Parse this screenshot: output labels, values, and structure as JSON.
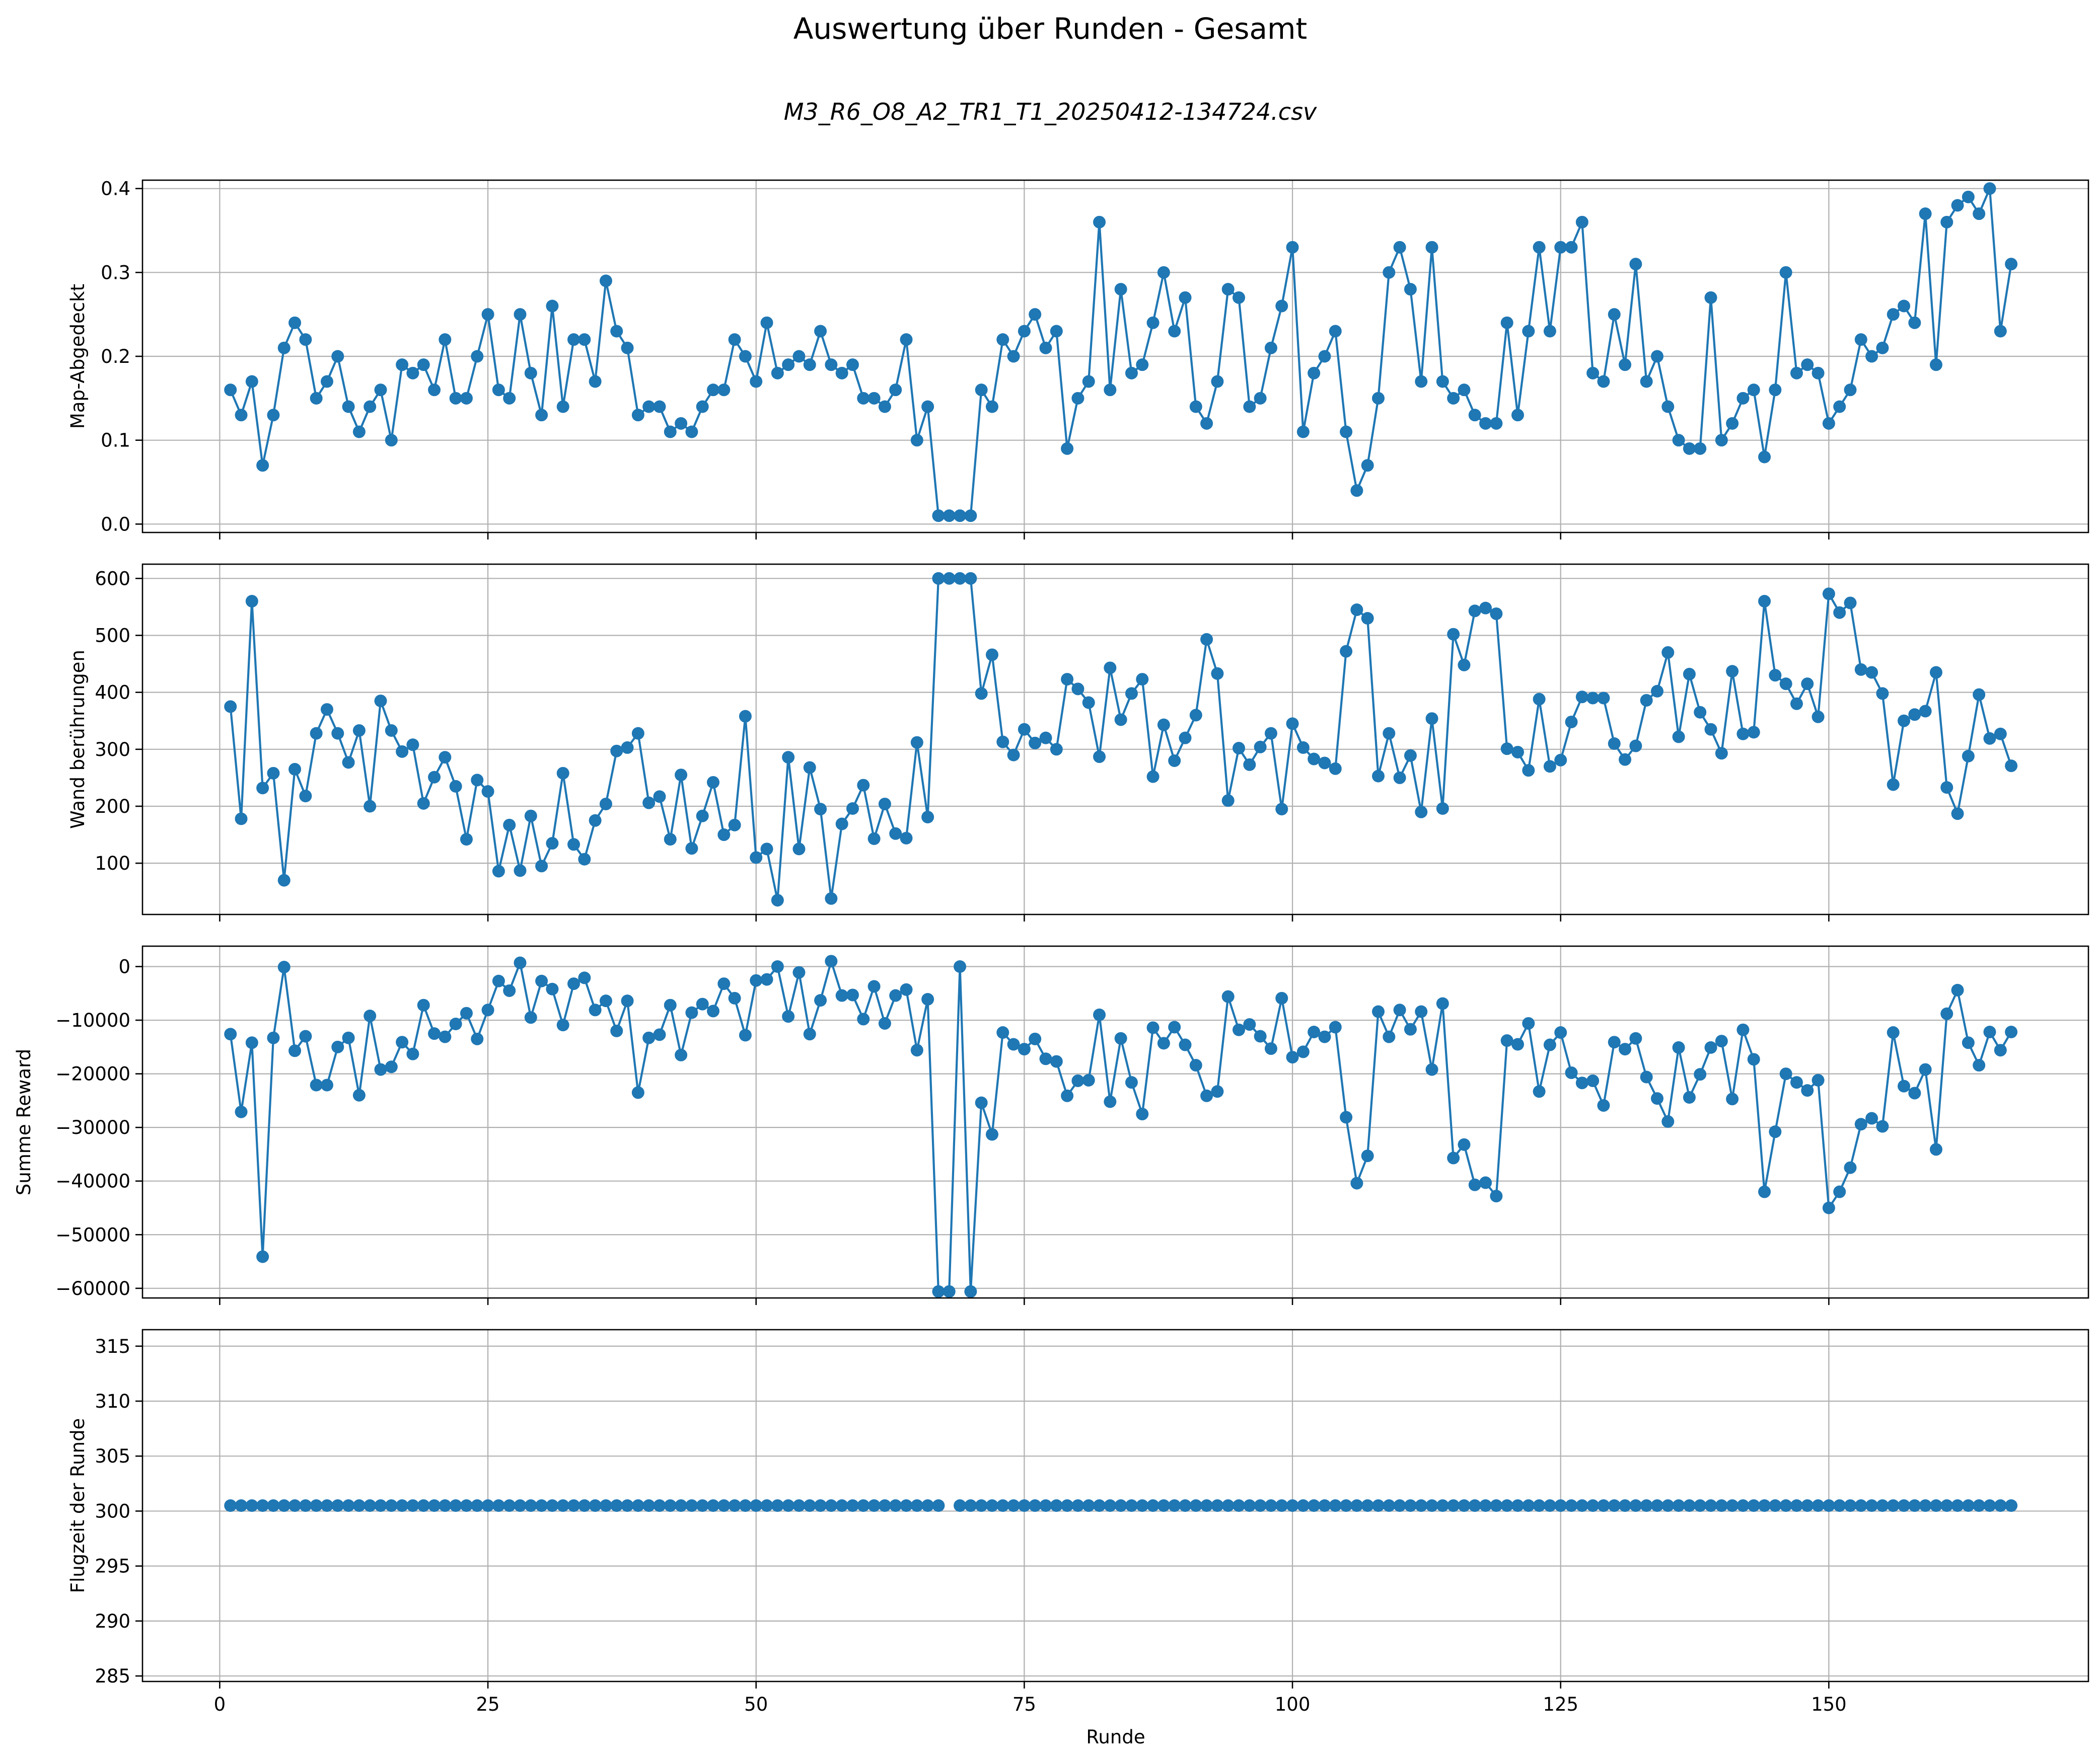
{
  "chart_data": {
    "type": "line",
    "title": "Auswertung über Runden - Gesamt",
    "subtitle": "M3_R6_O8_A2_TR1_T1_20250412-134724.csv",
    "xlabel": "Runde",
    "xlim": [
      -7.2,
      174.2
    ],
    "x_ticks": [
      0,
      25,
      50,
      75,
      100,
      125,
      150
    ],
    "grid": true,
    "series_color": "#1f77b4",
    "panels": [
      {
        "name": "map",
        "ylabel": "Map-Abgedeckt",
        "ylim": [
          -0.01,
          0.41
        ],
        "y_ticks": [
          0.0,
          0.1,
          0.2,
          0.3,
          0.4
        ],
        "y_tick_labels": [
          "0.0",
          "0.1",
          "0.2",
          "0.3",
          "0.4"
        ],
        "values": [
          0.16,
          0.13,
          0.17,
          0.07,
          0.13,
          0.21,
          0.24,
          0.22,
          0.15,
          0.17,
          0.2,
          0.14,
          0.11,
          0.14,
          0.16,
          0.1,
          0.19,
          0.18,
          0.19,
          0.16,
          0.22,
          0.15,
          0.15,
          0.2,
          0.25,
          0.16,
          0.15,
          0.25,
          0.18,
          0.13,
          0.26,
          0.14,
          0.22,
          0.22,
          0.17,
          0.29,
          0.23,
          0.21,
          0.13,
          0.14,
          0.14,
          0.11,
          0.12,
          0.11,
          0.14,
          0.16,
          0.16,
          0.22,
          0.2,
          0.17,
          0.24,
          0.18,
          0.19,
          0.2,
          0.19,
          0.23,
          0.19,
          0.18,
          0.19,
          0.15,
          0.15,
          0.14,
          0.16,
          0.22,
          0.1,
          0.14,
          0.01,
          0.01,
          0.01,
          0.01,
          0.16,
          0.14,
          0.22,
          0.2,
          0.23,
          0.25,
          0.21,
          0.23,
          0.09,
          0.15,
          0.17,
          0.36,
          0.16,
          0.28,
          0.18,
          0.19,
          0.24,
          0.3,
          0.23,
          0.27,
          0.14,
          0.12,
          0.17,
          0.28,
          0.27,
          0.14,
          0.15,
          0.21,
          0.26,
          0.33,
          0.11,
          0.18,
          0.2,
          0.23,
          0.11,
          0.04,
          0.07,
          0.15,
          0.3,
          0.33,
          0.28,
          0.17,
          0.33,
          0.17,
          0.15,
          0.16,
          0.13,
          0.12,
          0.12,
          0.24,
          0.13,
          0.23,
          0.33,
          0.23,
          0.33,
          0.33,
          0.36,
          0.18,
          0.17,
          0.25,
          0.19,
          0.31,
          0.17,
          0.2,
          0.14,
          0.1,
          0.09,
          0.09,
          0.27,
          0.1,
          0.12,
          0.15,
          0.16,
          0.08,
          0.16,
          0.3,
          0.18,
          0.19,
          0.18,
          0.12,
          0.14,
          0.16,
          0.22,
          0.2,
          0.21,
          0.25,
          0.26,
          0.24,
          0.37,
          0.19,
          0.36,
          0.38,
          0.39,
          0.37,
          0.4,
          0.23,
          0.31
        ]
      },
      {
        "name": "wand",
        "ylabel": "Wand berührungen",
        "ylim": [
          10,
          625
        ],
        "y_ticks": [
          100,
          200,
          300,
          400,
          500,
          600
        ],
        "y_tick_labels": [
          "100",
          "200",
          "300",
          "400",
          "500",
          "600"
        ],
        "values": [
          375,
          178,
          560,
          232,
          258,
          70,
          265,
          218,
          328,
          370,
          328,
          277,
          333,
          200,
          385,
          333,
          296,
          308,
          205,
          251,
          286,
          235,
          142,
          246,
          226,
          86,
          167,
          87,
          183,
          95,
          135,
          258,
          133,
          107,
          175,
          204,
          297,
          303,
          328,
          206,
          217,
          142,
          255,
          126,
          183,
          242,
          150,
          167,
          358,
          110,
          125,
          35,
          286,
          125,
          268,
          195,
          38,
          169,
          196,
          237,
          143,
          204,
          152,
          144,
          312,
          181,
          600,
          600,
          600,
          600,
          398,
          466,
          313,
          290,
          335,
          311,
          320,
          300,
          423,
          406,
          382,
          287,
          443,
          352,
          398,
          423,
          252,
          343,
          280,
          320,
          360,
          493,
          433,
          210,
          302,
          273,
          304,
          328,
          195,
          345,
          303,
          283,
          276,
          266,
          472,
          545,
          530,
          253,
          328,
          250,
          289,
          190,
          354,
          196,
          502,
          448,
          543,
          548,
          538,
          301,
          295,
          263,
          388,
          270,
          281,
          348,
          392,
          390,
          390,
          310,
          282,
          306,
          386,
          402,
          470,
          322,
          432,
          365,
          335,
          293,
          437,
          327,
          330,
          560,
          430,
          415,
          380,
          415,
          357,
          573,
          540,
          557,
          440,
          435,
          398,
          238,
          350,
          361,
          367,
          435,
          233,
          187,
          288,
          396,
          319,
          327,
          271
        ]
      },
      {
        "name": "reward",
        "ylabel": "Summe Reward",
        "ylim": [
          -61800,
          3800
        ],
        "y_ticks": [
          0,
          -10000,
          -20000,
          -30000,
          -40000,
          -50000,
          -60000
        ],
        "y_tick_labels": [
          "0",
          "−10000",
          "−20000",
          "−30000",
          "−40000",
          "−50000",
          "−60000"
        ],
        "values": [
          -12600,
          -27100,
          -14200,
          -54100,
          -13300,
          -100,
          -15700,
          -13000,
          -22100,
          -22100,
          -15000,
          -13300,
          -24000,
          -9200,
          -19200,
          -18700,
          -14100,
          -16300,
          -7200,
          -12500,
          -13100,
          -10700,
          -8700,
          -13500,
          -8100,
          -2700,
          -4500,
          700,
          -9500,
          -2700,
          -4200,
          -10900,
          -3200,
          -2100,
          -8100,
          -6400,
          -12000,
          -6400,
          -23500,
          -13300,
          -12700,
          -7200,
          -16500,
          -8600,
          -7000,
          -8300,
          -3200,
          -5900,
          -12800,
          -2600,
          -2400,
          0,
          -9300,
          -1100,
          -12600,
          -6300,
          1000,
          -5400,
          -5300,
          -9800,
          -3700,
          -10600,
          -5400,
          -4300,
          -15600,
          -6100,
          -60600,
          -60600,
          0,
          -60600,
          -25400,
          -31300,
          -12300,
          -14500,
          -15400,
          -13500,
          -17200,
          -17700,
          -24100,
          -21300,
          -21200,
          -9000,
          -25200,
          -13400,
          -21600,
          -27500,
          -11400,
          -14300,
          -11300,
          -14600,
          -18400,
          -24100,
          -23300,
          -5600,
          -11800,
          -10800,
          -13000,
          -15300,
          -5900,
          -16900,
          -15900,
          -12200,
          -13100,
          -11300,
          -28100,
          -40400,
          -35300,
          -8400,
          -13100,
          -8100,
          -11700,
          -8400,
          -19200,
          -6900,
          -35700,
          -33200,
          -40700,
          -40300,
          -42800,
          -13800,
          -14500,
          -10600,
          -23300,
          -14600,
          -12300,
          -19800,
          -21700,
          -21300,
          -25900,
          -14100,
          -15400,
          -13400,
          -20600,
          -24600,
          -28900,
          -15100,
          -24400,
          -20100,
          -15100,
          -13900,
          -24700,
          -11800,
          -17300,
          -42000,
          -30800,
          -20000,
          -21600,
          -23100,
          -21200,
          -45000,
          -42000,
          -37500,
          -29400,
          -28300,
          -29800,
          -12300,
          -22300,
          -23600,
          -19200,
          -34100,
          -8800,
          -4400,
          -14200,
          -18400,
          -12200,
          -15600,
          -12200
        ]
      },
      {
        "name": "flugzeit",
        "ylabel": "Flugzeit der Runde",
        "ylim": [
          284.5,
          316.5
        ],
        "y_ticks": [
          285,
          290,
          295,
          300,
          305,
          310,
          315
        ],
        "y_tick_labels": [
          "285",
          "290",
          "295",
          "300",
          "305",
          "310",
          "315"
        ],
        "values": [
          300.5,
          300.5,
          300.5,
          300.5,
          300.5,
          300.5,
          300.5,
          300.5,
          300.5,
          300.5,
          300.5,
          300.5,
          300.5,
          300.5,
          300.5,
          300.5,
          300.5,
          300.5,
          300.5,
          300.5,
          300.5,
          300.5,
          300.5,
          300.5,
          300.5,
          300.5,
          300.5,
          300.5,
          300.5,
          300.5,
          300.5,
          300.5,
          300.5,
          300.5,
          300.5,
          300.5,
          300.5,
          300.5,
          300.5,
          300.5,
          300.5,
          300.5,
          300.5,
          300.5,
          300.5,
          300.5,
          300.5,
          300.5,
          300.5,
          300.5,
          300.5,
          300.5,
          300.5,
          300.5,
          300.5,
          300.5,
          300.5,
          300.5,
          300.5,
          300.5,
          300.5,
          300.5,
          300.5,
          300.5,
          300.5,
          300.5,
          300.5,
          null,
          300.5,
          300.5,
          300.5,
          300.5,
          300.5,
          300.5,
          300.5,
          300.5,
          300.5,
          300.5,
          300.5,
          300.5,
          300.5,
          300.5,
          300.5,
          300.5,
          300.5,
          300.5,
          300.5,
          300.5,
          300.5,
          300.5,
          300.5,
          300.5,
          300.5,
          300.5,
          300.5,
          300.5,
          300.5,
          300.5,
          300.5,
          300.5,
          300.5,
          300.5,
          300.5,
          300.5,
          300.5,
          300.5,
          300.5,
          300.5,
          300.5,
          300.5,
          300.5,
          300.5,
          300.5,
          300.5,
          300.5,
          300.5,
          300.5,
          300.5,
          300.5,
          300.5,
          300.5,
          300.5,
          300.5,
          300.5,
          300.5,
          300.5,
          300.5,
          300.5,
          300.5,
          300.5,
          300.5,
          300.5,
          300.5,
          300.5,
          300.5,
          300.5,
          300.5,
          300.5,
          300.5,
          300.5,
          300.5,
          300.5,
          300.5,
          300.5,
          300.5,
          300.5,
          300.5,
          300.5,
          300.5,
          300.5,
          300.5,
          300.5,
          300.5,
          300.5,
          300.5,
          300.5,
          300.5,
          300.5,
          300.5,
          300.5,
          300.5,
          300.5,
          300.5,
          300.5,
          300.5,
          300.5,
          300.5
        ]
      }
    ]
  }
}
